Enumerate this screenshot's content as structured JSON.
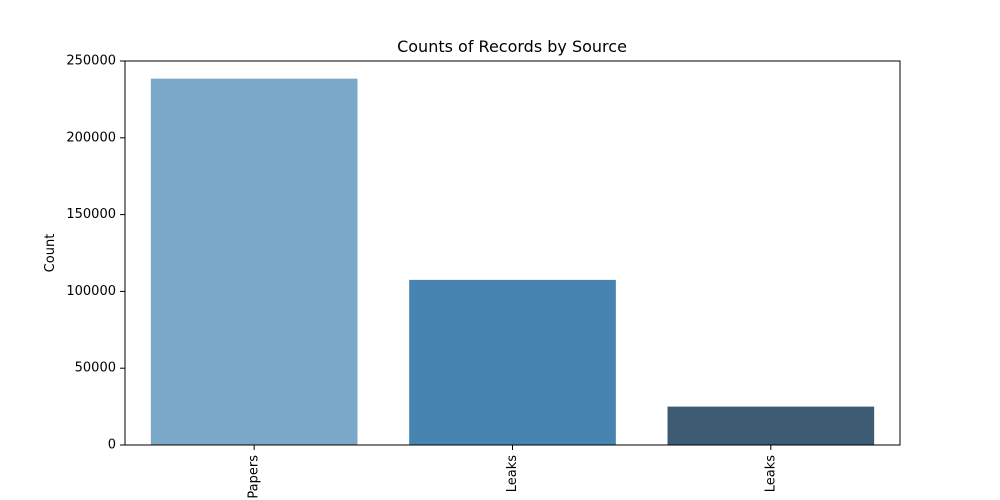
{
  "chart_data": {
    "type": "bar",
    "title": "Counts of Records by Source",
    "xlabel": "",
    "ylabel": "Count",
    "categories": [
      "Papers",
      "Leaks",
      "Leaks"
    ],
    "values": [
      238500,
      107500,
      25000
    ],
    "bar_colors": [
      "#7ba7c9",
      "#4884b1",
      "#3d5c74"
    ],
    "ylim": [
      0,
      250000
    ],
    "yticks": [
      0,
      50000,
      100000,
      150000,
      200000,
      250000
    ],
    "ytick_labels": [
      "0",
      "50000",
      "100000",
      "150000",
      "200000",
      "250000"
    ],
    "grid": false,
    "legend": "none"
  }
}
